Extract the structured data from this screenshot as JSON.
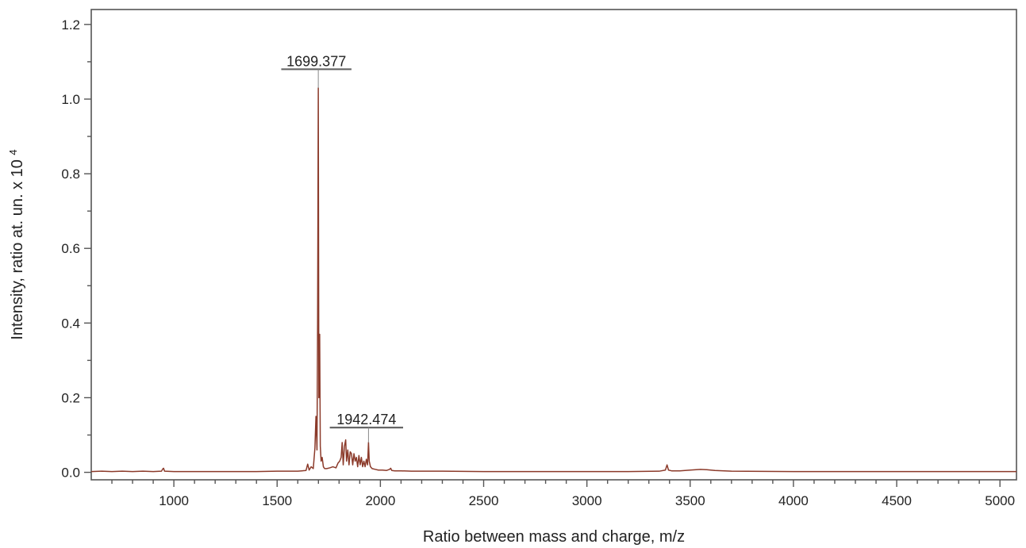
{
  "chart_data": {
    "type": "line",
    "title": "",
    "xlabel": "Ratio between mass and charge, m/z",
    "ylabel_main": "Intensity, ratio at. un. x 10",
    "ylabel_exponent": "4",
    "xlim": [
      600,
      5080
    ],
    "ylim": [
      -0.02,
      1.24
    ],
    "x_ticks": [
      1000,
      1500,
      2000,
      2500,
      3000,
      3500,
      4000,
      4500,
      5000
    ],
    "x_tick_labels": [
      "1000",
      "1500",
      "2000",
      "2500",
      "3000",
      "3500",
      "4000",
      "4500",
      "5000"
    ],
    "y_ticks": [
      0.0,
      0.2,
      0.4,
      0.6,
      0.8,
      1.0,
      1.2
    ],
    "y_tick_labels": [
      "0.0",
      "0.2",
      "0.4",
      "0.6",
      "0.8",
      "1.0",
      "1.2"
    ],
    "grid": false,
    "line_color": "#8b3a2a",
    "series": [
      {
        "x": [
          600,
          650,
          700,
          750,
          800,
          850,
          900,
          940,
          945,
          950,
          955,
          1000,
          1100,
          1200,
          1300,
          1400,
          1500,
          1600,
          1640,
          1648,
          1655,
          1665,
          1675,
          1683,
          1688,
          1693,
          1696,
          1699.377,
          1702,
          1706,
          1709,
          1713,
          1718,
          1724,
          1730,
          1740,
          1755,
          1770,
          1785,
          1795,
          1803,
          1810,
          1815,
          1820,
          1826,
          1832,
          1836,
          1842,
          1848,
          1854,
          1860,
          1866,
          1872,
          1878,
          1884,
          1890,
          1896,
          1902,
          1908,
          1914,
          1920,
          1926,
          1932,
          1938,
          1942.474,
          1946,
          1952,
          1960,
          1975,
          1990,
          2010,
          2030,
          2045,
          2050,
          2055,
          2070,
          2100,
          2150,
          2200,
          2300,
          2500,
          2700,
          3000,
          3200,
          3350,
          3380,
          3388,
          3395,
          3410,
          3450,
          3500,
          3550,
          3580,
          3620,
          3700,
          4000,
          4500,
          5080
        ],
        "y": [
          0.002,
          0.003,
          0.002,
          0.003,
          0.002,
          0.003,
          0.002,
          0.003,
          0.008,
          0.011,
          0.003,
          0.002,
          0.002,
          0.002,
          0.002,
          0.002,
          0.003,
          0.003,
          0.005,
          0.022,
          0.006,
          0.015,
          0.01,
          0.065,
          0.15,
          0.06,
          0.4,
          1.03,
          0.2,
          0.37,
          0.07,
          0.03,
          0.04,
          0.015,
          0.01,
          0.01,
          0.012,
          0.015,
          0.012,
          0.025,
          0.03,
          0.04,
          0.08,
          0.02,
          0.07,
          0.087,
          0.03,
          0.06,
          0.02,
          0.055,
          0.05,
          0.02,
          0.05,
          0.03,
          0.04,
          0.015,
          0.045,
          0.02,
          0.04,
          0.015,
          0.03,
          0.015,
          0.035,
          0.02,
          0.08,
          0.03,
          0.015,
          0.01,
          0.008,
          0.006,
          0.006,
          0.005,
          0.008,
          0.011,
          0.005,
          0.004,
          0.004,
          0.003,
          0.003,
          0.003,
          0.002,
          0.002,
          0.002,
          0.002,
          0.003,
          0.006,
          0.02,
          0.006,
          0.004,
          0.004,
          0.006,
          0.008,
          0.007,
          0.005,
          0.003,
          0.002,
          0.002,
          0.002
        ]
      }
    ],
    "annotations": [
      {
        "label": "1699.377",
        "x": 1699.377,
        "y_value": 1.03,
        "bar_from": 1520,
        "bar_to": 1860,
        "text_y": 1.08
      },
      {
        "label": "1942.474",
        "x": 1942.474,
        "y_value": 0.08,
        "bar_from": 1755,
        "bar_to": 2110,
        "text_y": 0.12
      }
    ]
  }
}
